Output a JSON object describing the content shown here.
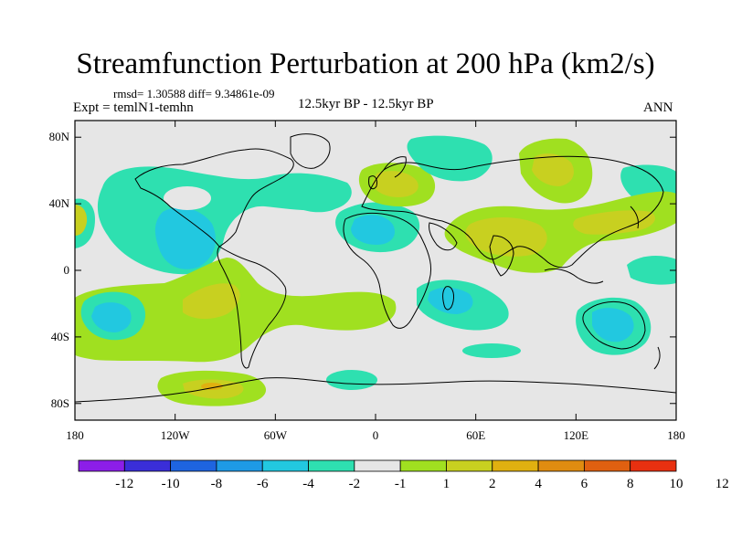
{
  "title": "Streamfunction Perturbation at 200 hPa (km2/s)",
  "stats": "rmsd= 1.30588 diff= 9.34861e-09",
  "left_label": "Expt = temlN1-temhn",
  "center_label": "12.5kyr BP - 12.5kyr BP",
  "right_label": "ANN",
  "map": {
    "lat_ticks": [
      {
        "label": "80N",
        "value": 80
      },
      {
        "label": "40N",
        "value": 40
      },
      {
        "label": "0",
        "value": 0
      },
      {
        "label": "40S",
        "value": -40
      },
      {
        "label": "80S",
        "value": -80
      }
    ],
    "lon_ticks": [
      {
        "label": "180",
        "value": -180
      },
      {
        "label": "120W",
        "value": -120
      },
      {
        "label": "60W",
        "value": -60
      },
      {
        "label": "0",
        "value": 0
      },
      {
        "label": "60E",
        "value": 60
      },
      {
        "label": "120E",
        "value": 120
      },
      {
        "label": "180",
        "value": 180
      }
    ],
    "lat_range": [
      -90,
      90
    ],
    "lon_range": [
      -180,
      180
    ]
  },
  "colorbar": {
    "colors": [
      "#8c1ee8",
      "#3a2ed8",
      "#1e64e0",
      "#1e9ae6",
      "#22c8e0",
      "#2ee0b0",
      "#e6e6e6",
      "#a0e020",
      "#c8d020",
      "#e0b010",
      "#e08c10",
      "#e06010",
      "#e83010"
    ],
    "labels": [
      "-12",
      "-10",
      "-8",
      "-6",
      "-4",
      "-2",
      "-1",
      "1",
      "2",
      "4",
      "6",
      "8",
      "10",
      "12"
    ]
  },
  "legend_colors": {
    "weak_negative": "#2ee0b0",
    "moderate_negative": "#22c8e0",
    "weak_positive": "#a0e020",
    "moderate_positive": "#c8d020",
    "strong_positive": "#e0b010"
  }
}
